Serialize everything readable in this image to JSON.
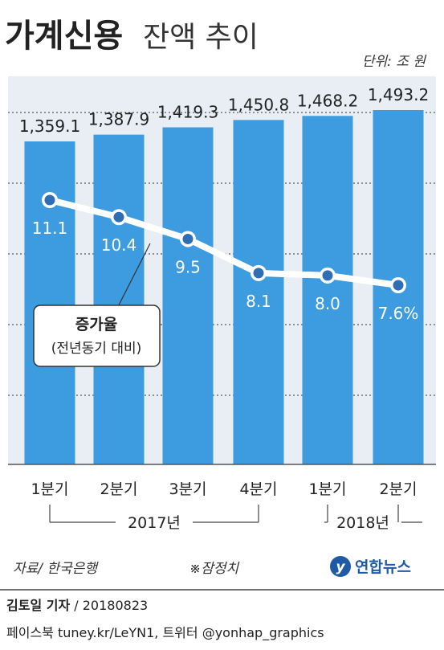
{
  "title_bold": "가계신용",
  "title_light": "잔액 추이",
  "unit": "단위: 조 원",
  "source": "자료/ 한국은행",
  "note": "※잠정치",
  "logo_text": "연합뉴스",
  "byline": {
    "reporter": "김토일 기자",
    "date": " / 20180823"
  },
  "social": "페이스북 tuney.kr/LeYN1, 트위터 @yonhap_graphics",
  "colors": {
    "bar": "#3d9be0",
    "panel": "#e8eef3",
    "line": "#ffffff",
    "marker": "#2f6db5",
    "logo": "#1f5aa6"
  },
  "chart_data": {
    "type": "bar",
    "categories": [
      "1분기",
      "2분기",
      "3분기",
      "4분기",
      "1분기",
      "2분기"
    ],
    "years": [
      {
        "label": "2017년",
        "from": 0,
        "to": 3
      },
      {
        "label": "2018년",
        "from": 4,
        "to": 5
      }
    ],
    "series": [
      {
        "values": [
          1359.1,
          1387.9,
          1419.3,
          1450.8,
          1468.2,
          1493.2
        ],
        "labels": [
          "1,359.1",
          "1,387.9",
          "1,419.3",
          "1,450.8",
          "1,468.2",
          "1,493.2"
        ]
      },
      {
        "type": "line",
        "values": [
          11.1,
          10.4,
          9.5,
          8.1,
          8.0,
          7.6
        ],
        "labels": [
          "11.1",
          "10.4",
          "9.5",
          "8.1",
          "8.0",
          "7.6%"
        ]
      }
    ],
    "legend_box": {
      "title": "증가율",
      "subtitle": "(전년동기 대비)"
    },
    "grid": true
  }
}
